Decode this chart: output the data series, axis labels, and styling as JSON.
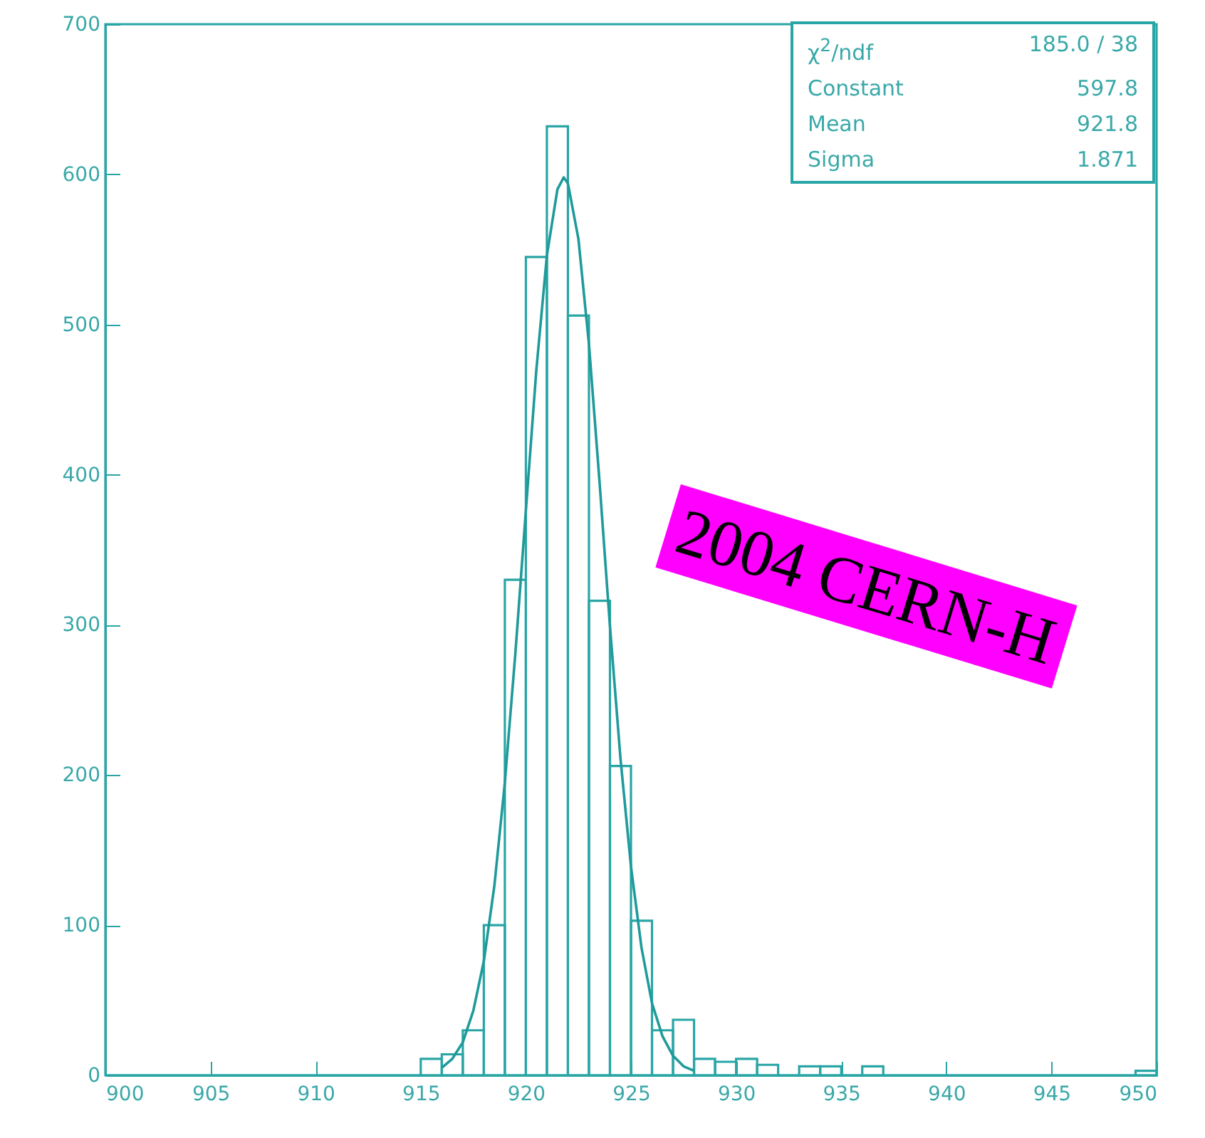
{
  "chart_data": {
    "type": "histogram",
    "series": [
      {
        "color": "#2aa5a5",
        "bins": [
          900,
          901,
          902,
          903,
          904,
          905,
          906,
          907,
          908,
          909,
          910,
          911,
          912,
          913,
          914,
          915,
          916,
          917,
          918,
          919,
          920,
          921,
          922,
          923,
          924,
          925,
          926,
          927,
          928,
          929,
          930,
          931,
          932,
          933,
          934,
          935,
          936,
          937,
          938,
          939,
          940,
          941,
          942,
          943,
          944,
          945,
          946,
          947,
          948,
          949,
          950
        ],
        "values": [
          0,
          0,
          0,
          0,
          0,
          0,
          0,
          0,
          0,
          0,
          0,
          0,
          0,
          0,
          0,
          11,
          14,
          30,
          100,
          330,
          545,
          632,
          506,
          316,
          206,
          103,
          30,
          37,
          11,
          9,
          11,
          7,
          0,
          6,
          6,
          0,
          6,
          0,
          0,
          0,
          0,
          0,
          0,
          0,
          0,
          0,
          0,
          0,
          0,
          3
        ]
      },
      {
        "type": "line",
        "color": "#1f9a9a",
        "x": [
          916,
          916.5,
          917,
          917.5,
          918,
          918.5,
          919,
          919.5,
          920,
          920.5,
          921,
          921.5,
          921.8,
          922,
          922.5,
          923,
          923.5,
          924,
          924.5,
          925,
          925.5,
          926,
          926.5,
          927,
          927.5,
          928
        ],
        "values": [
          5,
          11,
          22,
          43,
          76,
          126,
          195,
          281,
          376,
          470,
          546,
          590,
          598,
          594,
          557,
          487,
          396,
          299,
          211,
          139,
          85,
          48,
          26,
          13,
          6,
          3
        ]
      }
    ],
    "xlim": [
      900,
      950
    ],
    "xticks": [
      900,
      905,
      910,
      915,
      920,
      925,
      930,
      935,
      940,
      945,
      950
    ],
    "ylim": [
      0,
      700
    ],
    "yticks": [
      0,
      100,
      200,
      300,
      400,
      500,
      600,
      700
    ],
    "annotations": [
      "χ$^{2}$/ndf",
      "185.0   /   38",
      "Constant",
      "597.8",
      "Mean",
      "921.8",
      "Sigma",
      "1.871",
      "2004 CERN-H"
    ]
  }
}
